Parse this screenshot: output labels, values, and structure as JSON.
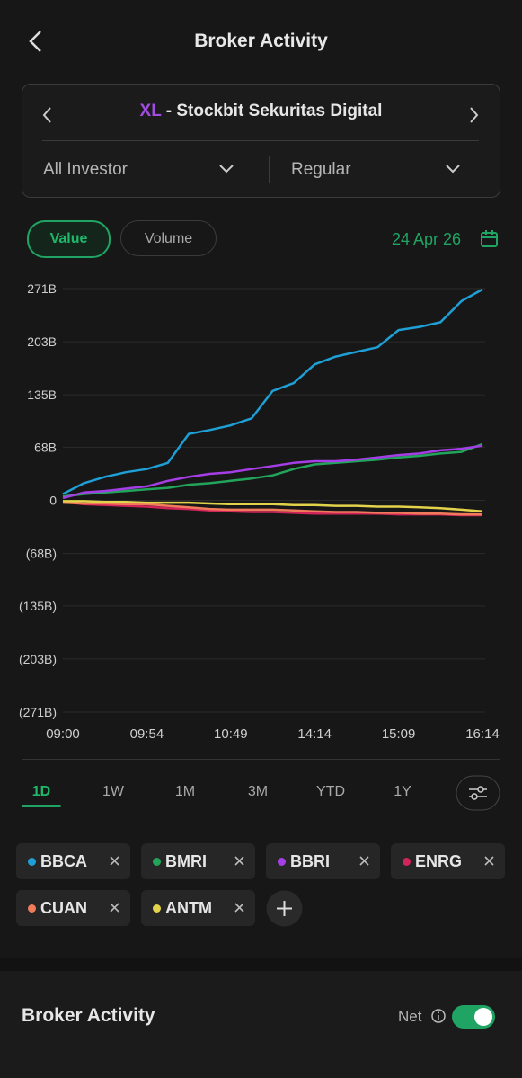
{
  "header": {
    "title": "Broker Activity"
  },
  "broker": {
    "code": "XL",
    "name": "- Stockbit Sekuritas Digital"
  },
  "filters": [
    "All Investor",
    "Regular"
  ],
  "tabs": [
    "Value",
    "Volume"
  ],
  "date": "24 Apr 26",
  "chart_data": {
    "type": "line",
    "categories": [
      "09:00",
      null,
      null,
      null,
      "09:54",
      null,
      null,
      null,
      "10:49",
      null,
      null,
      null,
      "14:14",
      null,
      null,
      null,
      "15:09",
      null,
      null,
      null,
      "16:14"
    ],
    "ylim": [
      -271,
      271
    ],
    "yticks": [
      {
        "value": 271,
        "label": "271B"
      },
      {
        "value": 203,
        "label": "203B"
      },
      {
        "value": 135,
        "label": "135B"
      },
      {
        "value": 68,
        "label": "68B"
      },
      0,
      {
        "value": -68,
        "label": "(68B)"
      },
      {
        "value": -135,
        "label": "(135B)"
      },
      {
        "value": -203,
        "label": "(203B)"
      },
      {
        "value": -271,
        "label": "(271B)"
      }
    ],
    "grid": true,
    "series": [
      {
        "name": "BBCA",
        "color": "#1e9fd6",
        "values": [
          8,
          22,
          30,
          36,
          40,
          48,
          85,
          90,
          96,
          105,
          140,
          150,
          174,
          184,
          190,
          196,
          218,
          222,
          228,
          255,
          270
        ]
      },
      {
        "name": "BMRI",
        "color": "#22a55b",
        "values": [
          5,
          8,
          10,
          12,
          14,
          16,
          20,
          22,
          25,
          28,
          32,
          40,
          46,
          48,
          50,
          52,
          55,
          57,
          60,
          62,
          72
        ]
      },
      {
        "name": "BBRI",
        "color": "#a63ee8",
        "values": [
          3,
          10,
          12,
          15,
          18,
          25,
          30,
          34,
          36,
          40,
          44,
          48,
          50,
          50,
          52,
          55,
          58,
          60,
          64,
          66,
          70
        ]
      },
      {
        "name": "ENRG",
        "color": "#d0245a",
        "values": [
          -2,
          -5,
          -6,
          -7,
          -8,
          -10,
          -11,
          -13,
          -14,
          -15,
          -15,
          -16,
          -17,
          -17,
          -17,
          -17,
          -18,
          -18,
          -18,
          -19,
          -19
        ]
      },
      {
        "name": "CUAN",
        "color": "#f07b5a",
        "values": [
          -3,
          -4,
          -4,
          -5,
          -5,
          -7,
          -9,
          -11,
          -12,
          -12,
          -12,
          -13,
          -14,
          -15,
          -15,
          -16,
          -16,
          -17,
          -17,
          -18,
          -18
        ]
      },
      {
        "name": "ANTM",
        "color": "#e2d34a",
        "values": [
          -1,
          -1,
          -2,
          -2,
          -3,
          -3,
          -3,
          -4,
          -5,
          -5,
          -5,
          -6,
          -6,
          -7,
          -7,
          -8,
          -8,
          -9,
          -10,
          -12,
          -14
        ]
      }
    ]
  },
  "ranges": [
    "1D",
    "1W",
    "1M",
    "3M",
    "YTD",
    "1Y"
  ],
  "footer": {
    "title": "Broker Activity",
    "toggle_label": "Net"
  }
}
